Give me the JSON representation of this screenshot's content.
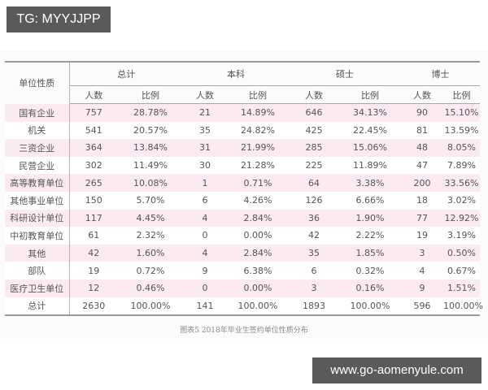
{
  "watermark_top": "TG: MYYJJPP",
  "watermark_bottom": "www.go-aomenyule.com",
  "table": {
    "row_header": "单位性质",
    "groups": [
      "总计",
      "本科",
      "硕士",
      "博士"
    ],
    "sub_headers": [
      "人数",
      "比例",
      "人数",
      "比例",
      "人数",
      "比例",
      "人数",
      "比例"
    ],
    "rows": [
      {
        "label": "国有企业",
        "values": [
          "757",
          "28.78%",
          "21",
          "14.89%",
          "646",
          "34.13%",
          "90",
          "15.10%"
        ]
      },
      {
        "label": "机关",
        "values": [
          "541",
          "20.57%",
          "35",
          "24.82%",
          "425",
          "22.45%",
          "81",
          "13.59%"
        ]
      },
      {
        "label": "三资企业",
        "values": [
          "364",
          "13.84%",
          "31",
          "21.99%",
          "285",
          "15.06%",
          "48",
          "8.05%"
        ]
      },
      {
        "label": "民营企业",
        "values": [
          "302",
          "11.49%",
          "30",
          "21.28%",
          "225",
          "11.89%",
          "47",
          "7.89%"
        ]
      },
      {
        "label": "高等教育单位",
        "values": [
          "265",
          "10.08%",
          "1",
          "0.71%",
          "64",
          "3.38%",
          "200",
          "33.56%"
        ]
      },
      {
        "label": "其他事业单位",
        "values": [
          "150",
          "5.70%",
          "6",
          "4.26%",
          "126",
          "6.66%",
          "18",
          "3.02%"
        ]
      },
      {
        "label": "科研设计单位",
        "values": [
          "117",
          "4.45%",
          "4",
          "2.84%",
          "36",
          "1.90%",
          "77",
          "12.92%"
        ]
      },
      {
        "label": "中初教育单位",
        "values": [
          "61",
          "2.32%",
          "0",
          "0.00%",
          "42",
          "2.22%",
          "19",
          "3.19%"
        ]
      },
      {
        "label": "其他",
        "values": [
          "42",
          "1.60%",
          "4",
          "2.84%",
          "35",
          "1.85%",
          "3",
          "0.50%"
        ]
      },
      {
        "label": "部队",
        "values": [
          "19",
          "0.72%",
          "9",
          "6.38%",
          "6",
          "0.32%",
          "4",
          "0.67%"
        ]
      },
      {
        "label": "医疗卫生单位",
        "values": [
          "12",
          "0.46%",
          "0",
          "0.00%",
          "3",
          "0.16%",
          "9",
          "1.51%"
        ]
      },
      {
        "label": "总计",
        "values": [
          "2630",
          "100.00%",
          "141",
          "100.00%",
          "1893",
          "100.00%",
          "596",
          "100.00%"
        ]
      }
    ],
    "caption": "图表5   2018年毕业生签约单位性质分布"
  }
}
